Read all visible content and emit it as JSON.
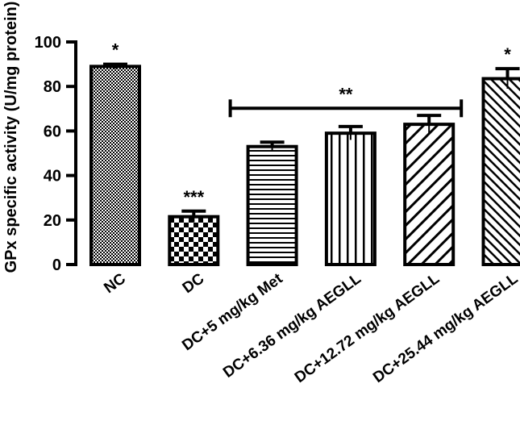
{
  "chart_data": {
    "type": "bar",
    "title": "",
    "xlabel": "",
    "ylabel": "GPx specific activity (U/mg protein)",
    "ylim": [
      0,
      100
    ],
    "yticks": [
      0,
      20,
      40,
      60,
      80,
      100
    ],
    "grid": false,
    "legend": "none",
    "categories": [
      "NC",
      "DC",
      "DC+5 mg/kg Met",
      "DC+6.36 mg/kg AEGLL",
      "DC+12.72 mg/kg AEGLL",
      "DC+25.44 mg/kg AEGLL"
    ],
    "values": [
      89,
      21.5,
      53,
      59,
      63,
      83.5
    ],
    "errors": [
      1,
      2.5,
      2,
      3,
      4,
      4.5
    ],
    "patterns": [
      "dots",
      "checker",
      "horizontal",
      "vertical",
      "diagonal",
      "diagonal-dense"
    ],
    "annotations": [
      {
        "category": 0,
        "text": "*"
      },
      {
        "category": 1,
        "text": "***"
      },
      {
        "category": 5,
        "text": "*"
      }
    ],
    "bracket": {
      "from": 2,
      "to": 4,
      "y": 72,
      "text": "**"
    },
    "colors": {
      "bar_edge": "#000000",
      "background": "#ffffff"
    }
  }
}
